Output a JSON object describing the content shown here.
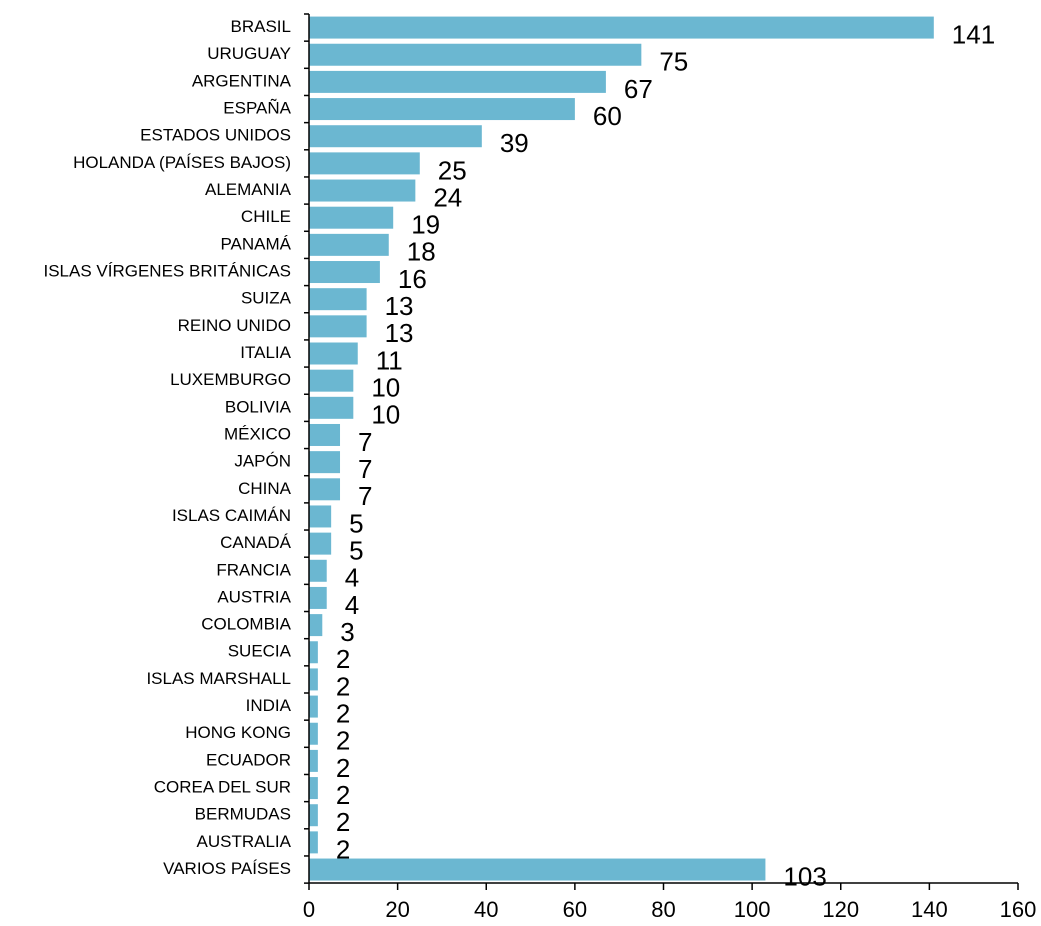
{
  "chart_data": {
    "type": "bar",
    "orientation": "horizontal",
    "bar_color": "#6BB7D1",
    "categories": [
      "BRASIL",
      "URUGUAY",
      "ARGENTINA",
      "ESPAÑA",
      "ESTADOS UNIDOS",
      "HOLANDA (PAÍSES BAJOS)",
      "ALEMANIA",
      "CHILE",
      "PANAMÁ",
      "ISLAS VÍRGENES BRITÁNICAS",
      "SUIZA",
      "REINO UNIDO",
      "ITALIA",
      "LUXEMBURGO",
      "BOLIVIA",
      "MÉXICO",
      "JAPÓN",
      "CHINA",
      "ISLAS CAIMÁN",
      "CANADÁ",
      "FRANCIA",
      "AUSTRIA",
      "COLOMBIA",
      "SUECIA",
      "ISLAS MARSHALL",
      "INDIA",
      "HONG KONG",
      "ECUADOR",
      "COREA DEL SUR",
      "BERMUDAS",
      "AUSTRALIA",
      "VARIOS PAÍSES"
    ],
    "values": [
      141,
      75,
      67,
      60,
      39,
      25,
      24,
      19,
      18,
      16,
      13,
      13,
      11,
      10,
      10,
      7,
      7,
      7,
      5,
      5,
      4,
      4,
      3,
      2,
      2,
      2,
      2,
      2,
      2,
      2,
      2,
      103
    ],
    "xlim": [
      0,
      160
    ],
    "xticks": [
      0,
      20,
      40,
      60,
      80,
      100,
      120,
      140,
      160
    ],
    "grid": false,
    "title": "",
    "xlabel": "",
    "ylabel": ""
  }
}
